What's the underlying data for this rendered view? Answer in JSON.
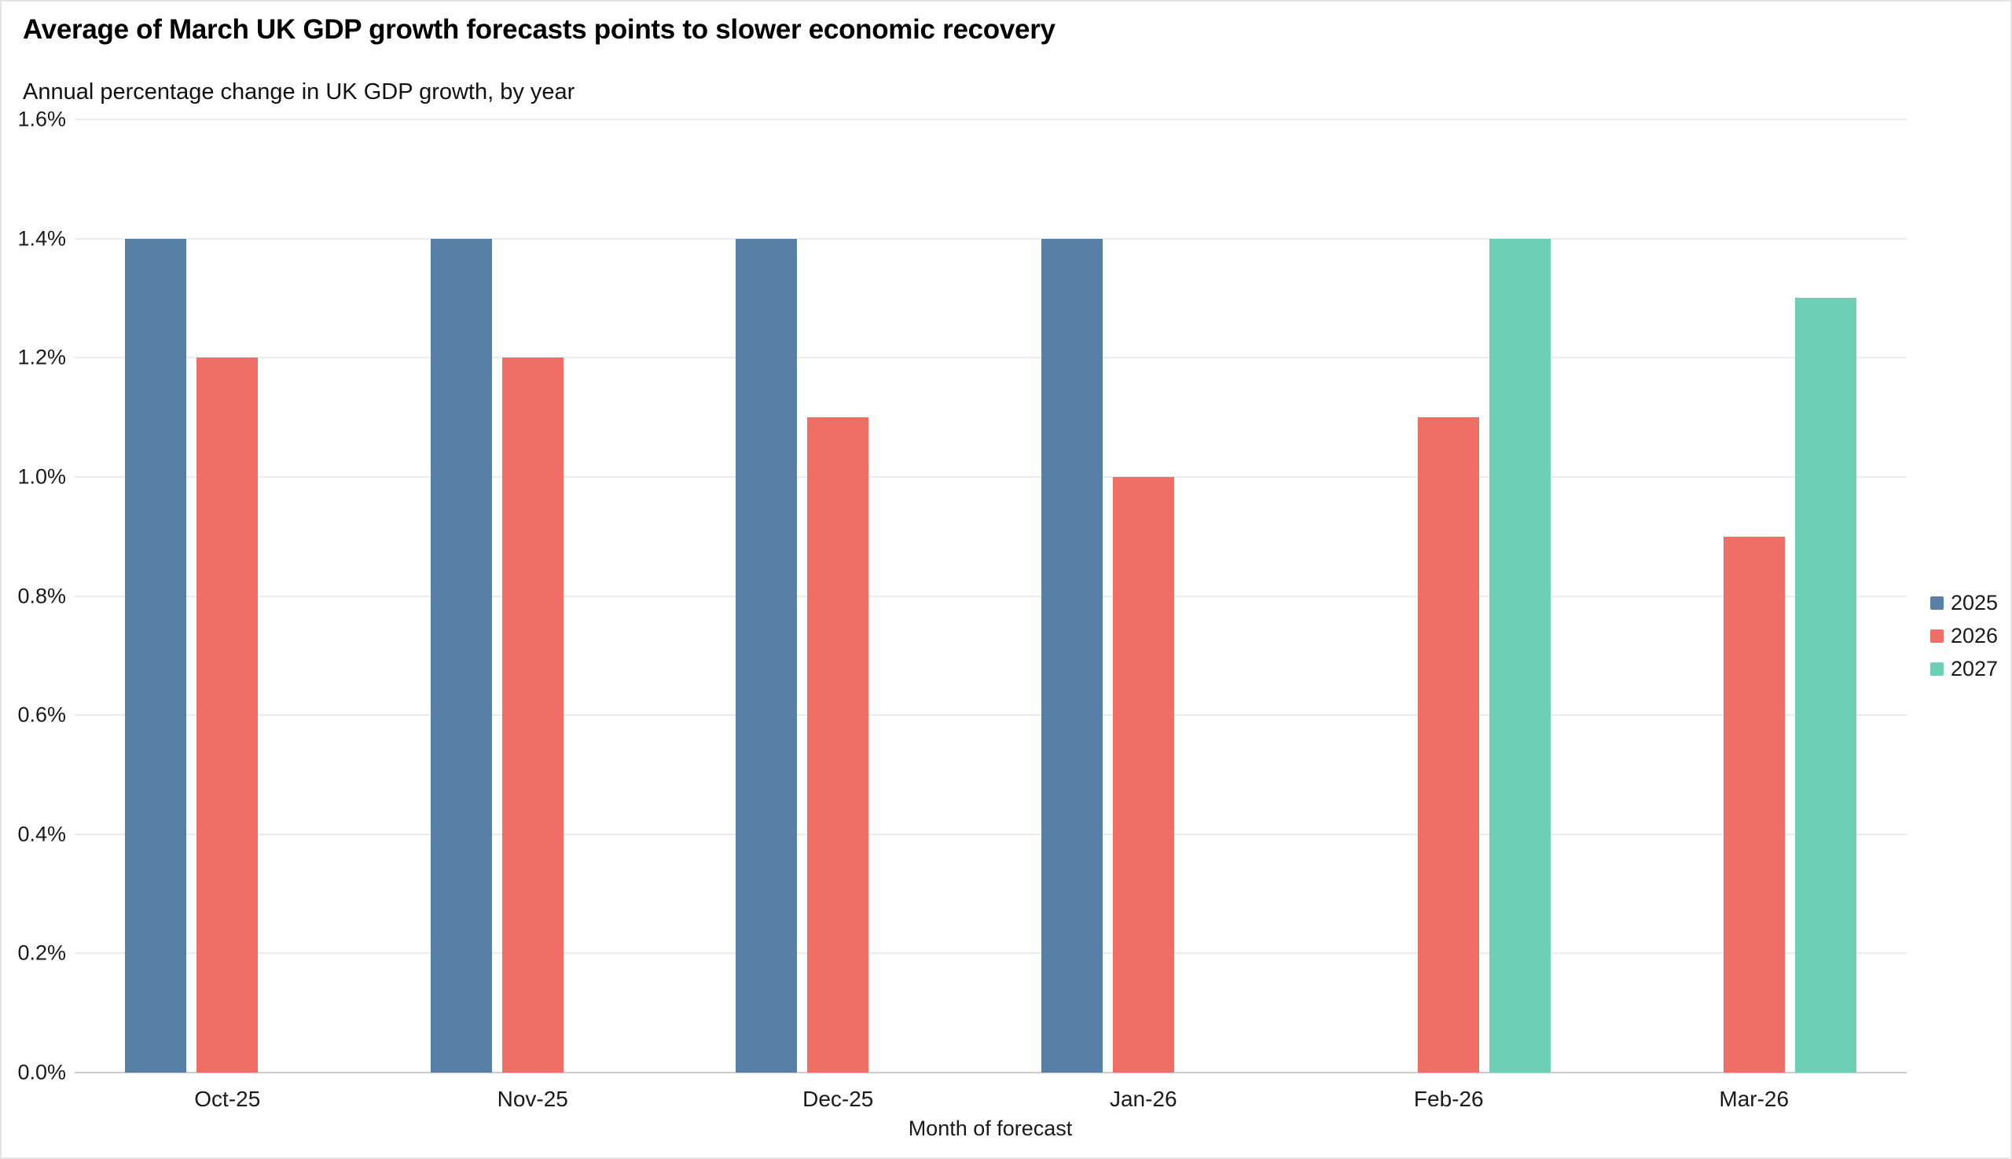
{
  "header": {
    "title": "Average of March UK GDP growth forecasts points to slower economic recovery",
    "subtitle": "Annual percentage change in UK GDP growth, by year"
  },
  "chart_data": {
    "type": "bar",
    "title": "Average of March UK GDP growth forecasts points to slower economic recovery",
    "subtitle": "Annual percentage change in UK GDP growth, by year",
    "categories": [
      "Oct-25",
      "Nov-25",
      "Dec-25",
      "Jan-26",
      "Feb-26",
      "Mar-26"
    ],
    "series": [
      {
        "name": "2025",
        "color": "#5880a7",
        "values": [
          1.4,
          1.4,
          1.4,
          1.4,
          null,
          null
        ]
      },
      {
        "name": "2026",
        "color": "#ef6e65",
        "values": [
          1.2,
          1.2,
          1.1,
          1.0,
          1.1,
          0.9
        ]
      },
      {
        "name": "2027",
        "color": "#6ccfb6",
        "values": [
          null,
          null,
          null,
          null,
          1.4,
          1.3
        ]
      }
    ],
    "xlabel": "Month of forecast",
    "ylabel": "",
    "ylim": [
      0,
      1.6
    ],
    "y_ticks": [
      {
        "value": 0.0,
        "label": "0.0%"
      },
      {
        "value": 0.2,
        "label": "0.2%"
      },
      {
        "value": 0.4,
        "label": "0.4%"
      },
      {
        "value": 0.6,
        "label": "0.6%"
      },
      {
        "value": 0.8,
        "label": "0.8%"
      },
      {
        "value": 1.0,
        "label": "1.0%"
      },
      {
        "value": 1.2,
        "label": "1.2%"
      },
      {
        "value": 1.4,
        "label": "1.4%"
      },
      {
        "value": 1.6,
        "label": "1.6%"
      }
    ],
    "grid": true,
    "legend_position": "right"
  }
}
